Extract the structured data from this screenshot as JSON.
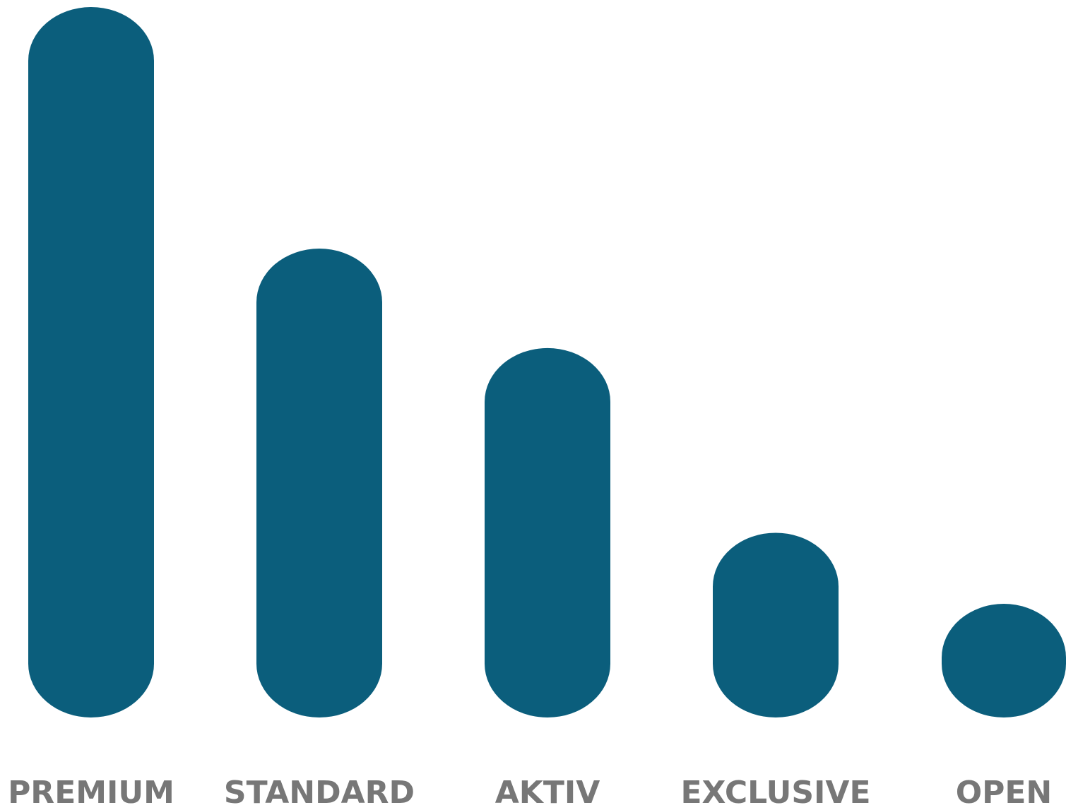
{
  "chart_data": {
    "type": "bar",
    "title": "",
    "xlabel": "",
    "ylabel": "",
    "categories": [
      "PREMIUM",
      "STANDARD",
      "AKTIV",
      "EXCLUSIVE",
      "OPEN"
    ],
    "values": [
      100,
      66,
      52,
      26,
      16
    ],
    "ylim": [
      0,
      100
    ],
    "grid": false,
    "legend": "none",
    "axes_visible": false,
    "bar_style": "rounded",
    "colors": {
      "bar": "#0B5E7C",
      "label": "#777777",
      "background": "#FFFFFF"
    }
  }
}
